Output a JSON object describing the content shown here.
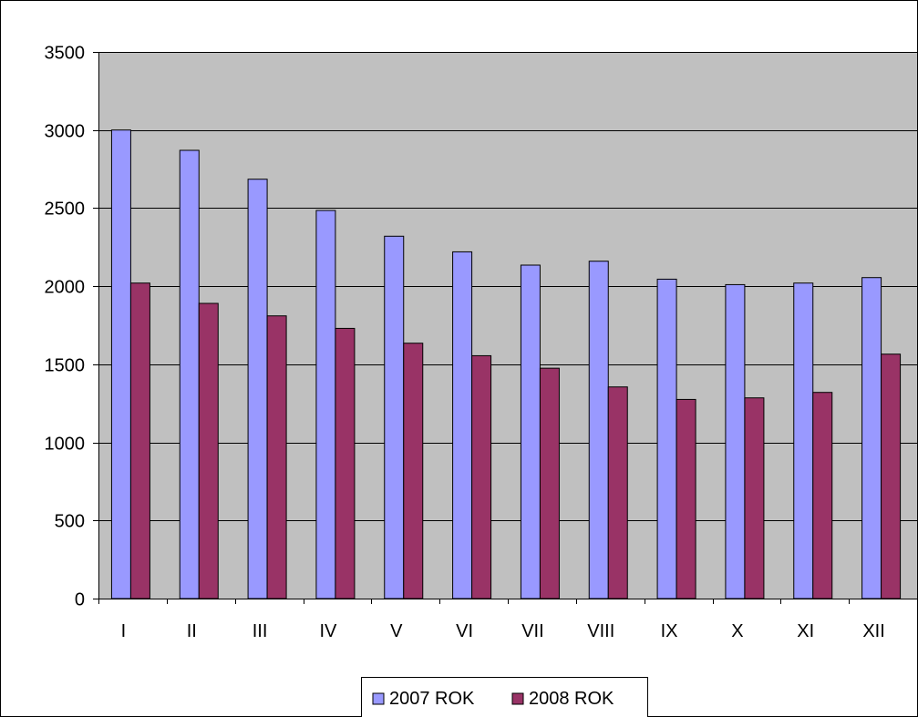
{
  "chart_data": {
    "type": "bar",
    "title": "",
    "xlabel": "",
    "ylabel": "",
    "categories": [
      "I",
      "II",
      "III",
      "IV",
      "V",
      "VI",
      "VII",
      "VIII",
      "IX",
      "X",
      "XI",
      "XII"
    ],
    "series": [
      {
        "name": "2007 ROK",
        "color": "#9999ff",
        "values": [
          3000,
          2870,
          2685,
          2485,
          2320,
          2220,
          2135,
          2160,
          2045,
          2010,
          2020,
          2055
        ]
      },
      {
        "name": "2008 ROK",
        "color": "#993366",
        "values": [
          2020,
          1890,
          1810,
          1730,
          1635,
          1555,
          1475,
          1355,
          1275,
          1285,
          1320,
          1565
        ]
      }
    ],
    "ylim": [
      0,
      3500
    ],
    "yticks": [
      0,
      500,
      1000,
      1500,
      2000,
      2500,
      3000,
      3500
    ],
    "grid": true,
    "legend_position": "bottom",
    "plot_background": "#c0c0c0"
  }
}
